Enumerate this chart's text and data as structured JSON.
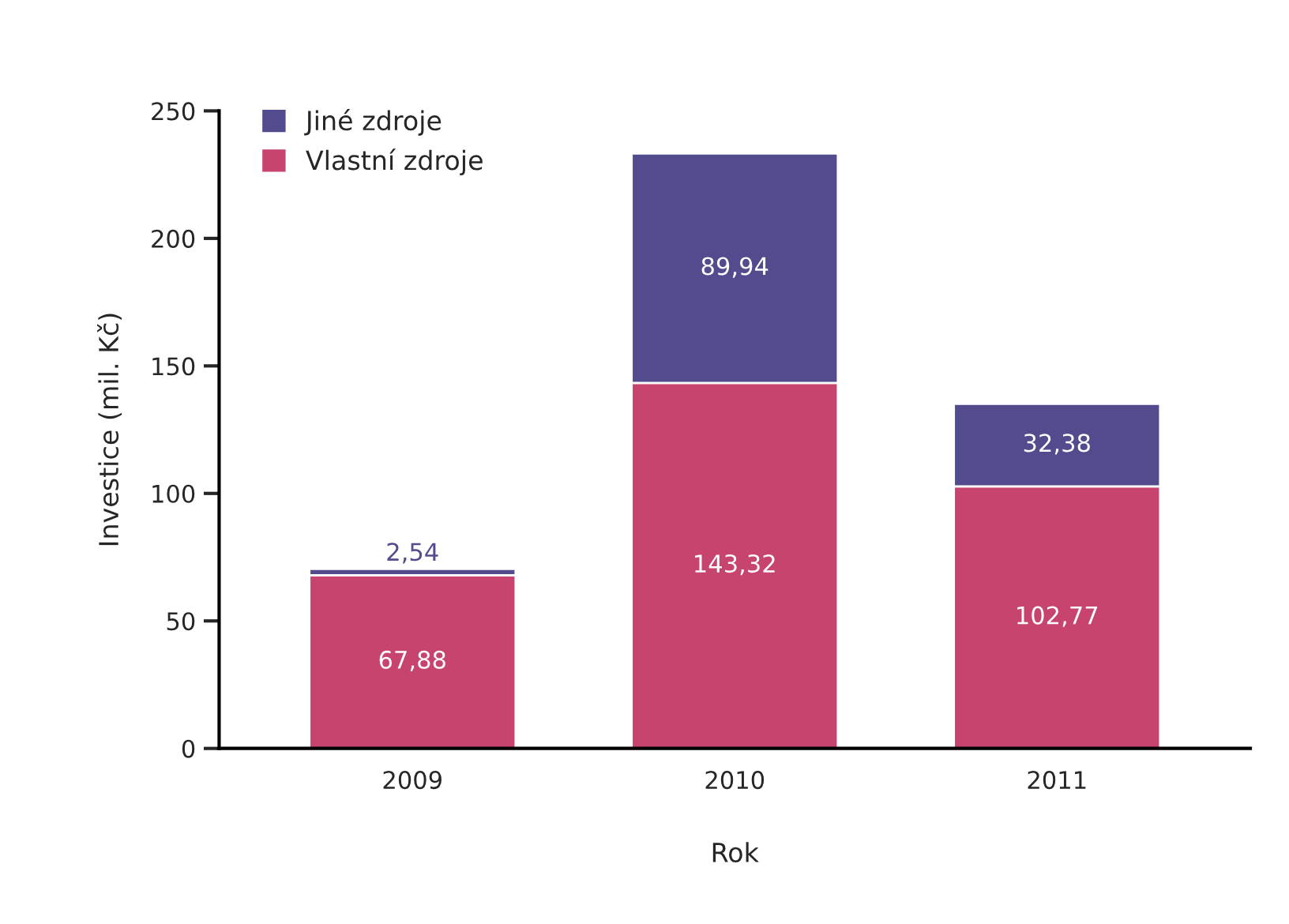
{
  "chart_data": {
    "type": "bar",
    "stacked": true,
    "xlabel": "Rok",
    "ylabel": "Investice (mil. Kč)",
    "categories": [
      "2009",
      "2010",
      "2011"
    ],
    "series": [
      {
        "name": "Vlastní zdroje",
        "color": "#c7446f",
        "values": [
          67.88,
          143.32,
          102.77
        ],
        "value_labels": [
          "67,88",
          "143,32",
          "102,77"
        ]
      },
      {
        "name": "Jiné zdroje",
        "color": "#524c8f",
        "values": [
          2.54,
          89.94,
          32.38
        ],
        "value_labels": [
          "2,54",
          "89,94",
          "32,38"
        ]
      }
    ],
    "ylim": [
      0,
      250
    ],
    "yticks": [
      0,
      50,
      100,
      150,
      200,
      250
    ],
    "grid": false,
    "legend": "top left"
  }
}
